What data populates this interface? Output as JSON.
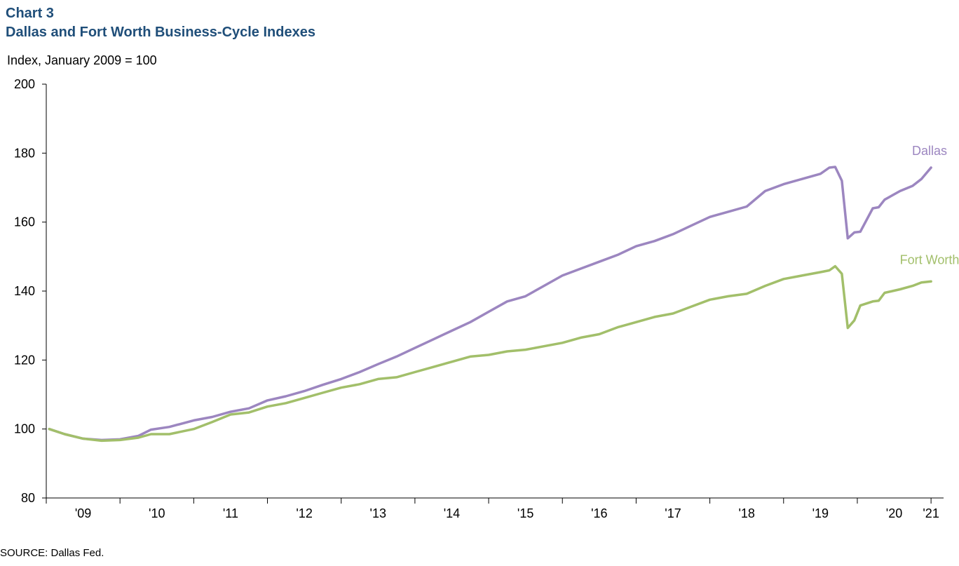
{
  "header": {
    "chart_label": "Chart 3",
    "title": "Dallas and Fort Worth Business-Cycle Indexes",
    "y_unit": "Index, January 2009 = 100"
  },
  "footer": {
    "source": "SOURCE:  Dallas Fed."
  },
  "colors": {
    "dallas": "#9c86c0",
    "fort_worth": "#a2bf6a",
    "axis": "#000000"
  },
  "chart_data": {
    "type": "line",
    "title": "Dallas and Fort Worth Business-Cycle Indexes",
    "ylabel": "Index, January 2009 = 100",
    "xlabel": "",
    "ylim": [
      80,
      200
    ],
    "xlim": [
      2009.0,
      2021.17
    ],
    "yticks": [
      80,
      100,
      120,
      140,
      160,
      180,
      200
    ],
    "xticks": [
      {
        "label": "'09",
        "value": 2009.5
      },
      {
        "label": "'10",
        "value": 2010.5
      },
      {
        "label": "'11",
        "value": 2011.5
      },
      {
        "label": "'12",
        "value": 2012.5
      },
      {
        "label": "'13",
        "value": 2013.5
      },
      {
        "label": "'14",
        "value": 2014.5
      },
      {
        "label": "'15",
        "value": 2015.5
      },
      {
        "label": "'16",
        "value": 2016.5
      },
      {
        "label": "'17",
        "value": 2017.5
      },
      {
        "label": "'18",
        "value": 2018.5
      },
      {
        "label": "'19",
        "value": 2019.5
      },
      {
        "label": "'20",
        "value": 2020.5
      },
      {
        "label": "'21",
        "value": 2021.0
      }
    ],
    "xgrid_boundaries": [
      2009.0,
      2010.0,
      2011.0,
      2012.0,
      2013.0,
      2014.0,
      2015.0,
      2016.0,
      2017.0,
      2018.0,
      2019.0,
      2020.0,
      2021.0
    ],
    "grid": false,
    "series": [
      {
        "name": "Dallas",
        "label_value": [
          2020.98,
          179.5
        ],
        "points": [
          [
            2009.04,
            100.0
          ],
          [
            2009.25,
            98.5
          ],
          [
            2009.5,
            97.2
          ],
          [
            2009.75,
            96.8
          ],
          [
            2010.0,
            97.0
          ],
          [
            2010.25,
            98.0
          ],
          [
            2010.42,
            99.8
          ],
          [
            2010.67,
            100.6
          ],
          [
            2011.0,
            102.5
          ],
          [
            2011.25,
            103.5
          ],
          [
            2011.5,
            105.0
          ],
          [
            2011.75,
            106.0
          ],
          [
            2012.0,
            108.3
          ],
          [
            2012.25,
            109.5
          ],
          [
            2012.5,
            111.0
          ],
          [
            2012.75,
            112.8
          ],
          [
            2013.0,
            114.5
          ],
          [
            2013.25,
            116.5
          ],
          [
            2013.5,
            118.8
          ],
          [
            2013.75,
            121.0
          ],
          [
            2014.0,
            123.5
          ],
          [
            2014.25,
            126.0
          ],
          [
            2014.5,
            128.5
          ],
          [
            2014.75,
            131.0
          ],
          [
            2015.0,
            134.0
          ],
          [
            2015.25,
            137.0
          ],
          [
            2015.5,
            138.5
          ],
          [
            2015.75,
            141.5
          ],
          [
            2016.0,
            144.5
          ],
          [
            2016.25,
            146.5
          ],
          [
            2016.5,
            148.5
          ],
          [
            2016.75,
            150.5
          ],
          [
            2017.0,
            153.0
          ],
          [
            2017.25,
            154.5
          ],
          [
            2017.5,
            156.5
          ],
          [
            2017.75,
            159.0
          ],
          [
            2018.0,
            161.5
          ],
          [
            2018.25,
            163.0
          ],
          [
            2018.5,
            164.5
          ],
          [
            2018.75,
            169.0
          ],
          [
            2019.0,
            171.0
          ],
          [
            2019.25,
            172.5
          ],
          [
            2019.5,
            174.0
          ],
          [
            2019.62,
            175.8
          ],
          [
            2019.7,
            176.0
          ],
          [
            2019.79,
            172.0
          ],
          [
            2019.87,
            155.3
          ],
          [
            2019.96,
            157.0
          ],
          [
            2020.04,
            157.2
          ],
          [
            2020.21,
            164.0
          ],
          [
            2020.29,
            164.3
          ],
          [
            2020.37,
            166.5
          ],
          [
            2020.58,
            169.0
          ],
          [
            2020.75,
            170.5
          ],
          [
            2020.87,
            172.5
          ],
          [
            2021.0,
            175.8
          ]
        ]
      },
      {
        "name": "Fort Worth",
        "label_value": [
          2020.98,
          147.8
        ],
        "points": [
          [
            2009.04,
            100.0
          ],
          [
            2009.25,
            98.5
          ],
          [
            2009.5,
            97.2
          ],
          [
            2009.75,
            96.6
          ],
          [
            2010.0,
            96.8
          ],
          [
            2010.25,
            97.5
          ],
          [
            2010.42,
            98.5
          ],
          [
            2010.67,
            98.5
          ],
          [
            2011.0,
            100.0
          ],
          [
            2011.25,
            102.0
          ],
          [
            2011.5,
            104.2
          ],
          [
            2011.75,
            104.8
          ],
          [
            2012.0,
            106.5
          ],
          [
            2012.25,
            107.5
          ],
          [
            2012.5,
            109.0
          ],
          [
            2012.75,
            110.5
          ],
          [
            2013.0,
            112.0
          ],
          [
            2013.25,
            113.0
          ],
          [
            2013.5,
            114.5
          ],
          [
            2013.75,
            115.0
          ],
          [
            2014.0,
            116.5
          ],
          [
            2014.25,
            118.0
          ],
          [
            2014.5,
            119.5
          ],
          [
            2014.75,
            121.0
          ],
          [
            2015.0,
            121.5
          ],
          [
            2015.25,
            122.5
          ],
          [
            2015.5,
            123.0
          ],
          [
            2015.75,
            124.0
          ],
          [
            2016.0,
            125.0
          ],
          [
            2016.25,
            126.5
          ],
          [
            2016.5,
            127.5
          ],
          [
            2016.75,
            129.5
          ],
          [
            2017.0,
            131.0
          ],
          [
            2017.25,
            132.5
          ],
          [
            2017.5,
            133.5
          ],
          [
            2017.75,
            135.5
          ],
          [
            2018.0,
            137.5
          ],
          [
            2018.25,
            138.5
          ],
          [
            2018.5,
            139.2
          ],
          [
            2018.75,
            141.5
          ],
          [
            2019.0,
            143.5
          ],
          [
            2019.25,
            144.5
          ],
          [
            2019.5,
            145.5
          ],
          [
            2019.62,
            146.0
          ],
          [
            2019.7,
            147.2
          ],
          [
            2019.79,
            145.0
          ],
          [
            2019.87,
            129.3
          ],
          [
            2019.96,
            131.5
          ],
          [
            2020.04,
            135.8
          ],
          [
            2020.21,
            137.0
          ],
          [
            2020.29,
            137.2
          ],
          [
            2020.37,
            139.5
          ],
          [
            2020.58,
            140.5
          ],
          [
            2020.75,
            141.5
          ],
          [
            2020.87,
            142.5
          ],
          [
            2021.0,
            142.8
          ]
        ]
      }
    ]
  }
}
